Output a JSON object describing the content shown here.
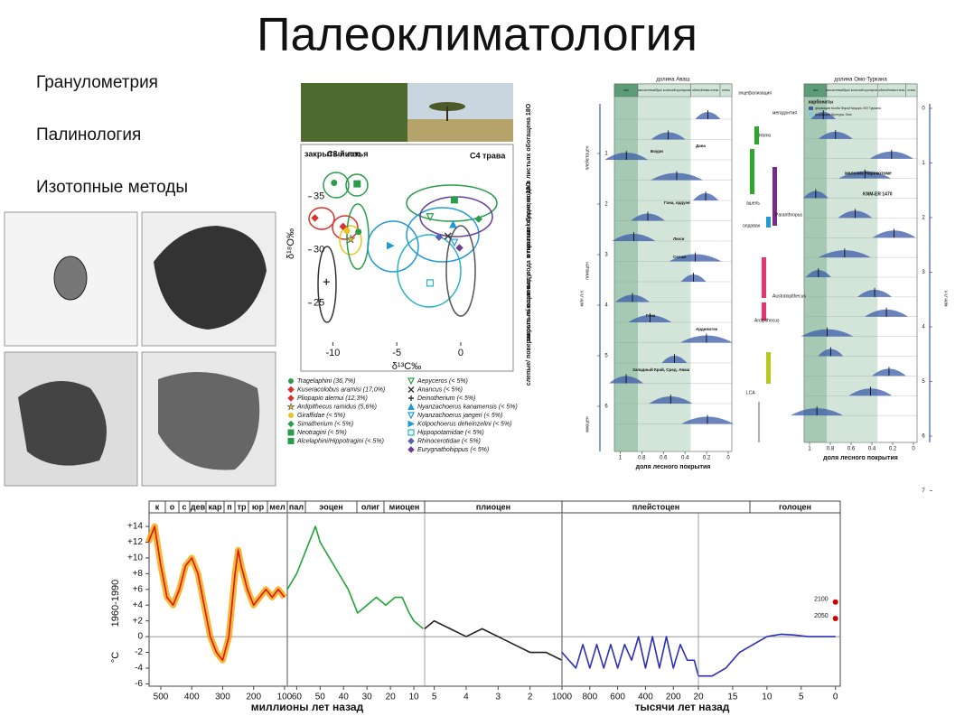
{
  "title": "Палеоклиматология",
  "methods": [
    "Гранулометрия",
    "Палинология",
    "Изотопные методы"
  ],
  "isotope_chart": {
    "type": "scatter",
    "xlabel": "δ¹³C‰",
    "ylabel": "δ¹⁸O‰",
    "xlim": [
      -12.5,
      4.1
    ],
    "ylim": [
      21,
      39.9
    ],
    "xticks": [
      -10,
      -5,
      0
    ],
    "yticks": [
      25,
      30,
      35
    ],
    "zone_labels": [
      "закрытый лес",
      "C3 листья",
      "C4 трава"
    ],
    "side_labels": [
      "открытые/ сухие, вода в листьях обогащена 18O",
      "закрытые/ влажные, вода в листьях обеднена 18O",
      "слепые/ поверхность пьющие воду"
    ],
    "series": [
      {
        "name": "Tragelaphini (36,7%)",
        "color": "#2a9d4a",
        "marker": "circle",
        "x": [
          -9.9,
          -8.0
        ],
        "values": [
          36.3,
          31.7
        ]
      },
      {
        "name": "Kuseracolobus aramisi (17,0%)",
        "color": "#d8322c",
        "marker": "diamond",
        "x": [
          -11.4
        ],
        "values": [
          33.0
        ]
      },
      {
        "name": "Pliopapio alemui (12,3%)",
        "color": "#d8322c",
        "marker": "diamond",
        "x": [
          -9.2
        ],
        "values": [
          32.2
        ]
      },
      {
        "name": "Ardipithecus ramidus (5,6%)",
        "color": "#e8c51e",
        "marker": "star",
        "x": [
          -8.6
        ],
        "values": [
          31.0
        ]
      },
      {
        "name": "Giraffidae (< 5%)",
        "color": "#e8c51e",
        "marker": "circle",
        "x": [
          -8.9
        ],
        "values": [
          31.8
        ]
      },
      {
        "name": "Simatherium (< 5%)",
        "color": "#2a9d4a",
        "marker": "diamond",
        "x": [
          1.4
        ],
        "values": [
          32.9
        ]
      },
      {
        "name": "Neotragini (< 5%)",
        "color": "#2a9d4a",
        "marker": "squareplus",
        "x": [
          -8.1
        ],
        "values": [
          36.2
        ]
      },
      {
        "name": "Alcelaphini/Hippotragini (< 5%)",
        "color": "#2a9d4a",
        "marker": "squarex",
        "x": [
          -0.5
        ],
        "values": [
          34.7
        ]
      },
      {
        "name": "Aepyceros (< 5%)",
        "color": "#2a9d4a",
        "marker": "tridown",
        "x": [
          -2.4
        ],
        "values": [
          33.1
        ]
      },
      {
        "name": "Anancus (< 5%)",
        "color": "#333333",
        "marker": "cross",
        "x": [
          -1.0
        ],
        "values": [
          31.3
        ]
      },
      {
        "name": "Deinotherium (< 5%)",
        "color": "#333333",
        "marker": "plus",
        "x": [
          -10.5
        ],
        "values": [
          27.0
        ]
      },
      {
        "name": "Nyanzachoerus kanamensis (< 5%)",
        "color": "#1e9ad6",
        "marker": "triup",
        "x": [
          -0.6
        ],
        "values": [
          32.4
        ]
      },
      {
        "name": "Nyanzachoerus jaegeri (< 5%)",
        "color": "#1e9ad6",
        "marker": "tridown",
        "x": [
          -0.5
        ],
        "values": [
          30.7
        ]
      },
      {
        "name": "Kolpochoerus deheinzelini (< 5%)",
        "color": "#1e9ad6",
        "marker": "triright",
        "x": [
          -5.5
        ],
        "values": [
          30.4
        ]
      },
      {
        "name": "Hippopotamidae (< 5%)",
        "color": "#27b4c2",
        "marker": "square",
        "x": [
          -2.4
        ],
        "values": [
          26.9
        ]
      },
      {
        "name": "Rhinocerotidae (< 5%)",
        "color": "#5b5fb0",
        "marker": "diamond",
        "x": [
          -1.7
        ],
        "values": [
          31.2
        ]
      },
      {
        "name": "Eurygnathohippus (< 5%)",
        "color": "#6a3d9a",
        "marker": "diamond",
        "x": [
          -0.1
        ],
        "values": [
          30.2
        ]
      }
    ]
  },
  "awash": {
    "title": "долина Аваш",
    "header": [
      "лес",
      "экосистема/буш/ колючий кустарник",
      "облесённая степь",
      "степь"
    ],
    "periods": [
      "плейстоцен",
      "плиоцен",
      "миоцен"
    ],
    "ylabel": "млн.л.н.",
    "yticks": [
      1,
      2,
      3,
      4,
      5,
      6
    ],
    "annotations": [
      "Дана",
      "Боури",
      "Гона, ордуэя",
      "Люси",
      "Селам",
      "Ардипитек",
      "Гона",
      "Западный Край, Сред. Аваш"
    ],
    "xlabel": "доля лесного покрытия",
    "xticks": [
      1,
      0.8,
      0.6,
      0.4,
      0.2,
      0
    ]
  },
  "hominins": [
    "энцефализация",
    "мегадонтия",
    "Homo",
    "Paranthropus",
    "Australopithecus",
    "Ardipithecus",
    "ашель",
    "олдован",
    "LCA"
  ],
  "omo": {
    "title": "долина Омо-Туркана",
    "header": [
      "лес",
      "экосистема/буш/ колючий кустарник",
      "облесённая степь",
      "степь"
    ],
    "legend_title": "карбонаты",
    "legend": [
      "формация Кооби Фора/Начукуи, В/З Туркана",
      "формация Шунгура, Омо"
    ],
    "annotations": [
      "мальчик Нарикотоме",
      "KNM-ER 1470"
    ],
    "ylabel": "млн.л.н.",
    "yticks": [
      0,
      1,
      2,
      3,
      4,
      5,
      6,
      7
    ],
    "xlabel": "доля лесного покрытия",
    "xticks": [
      1,
      0.8,
      0.6,
      0.4,
      0.2,
      0
    ]
  },
  "chart_data": {
    "type": "line",
    "ylabel": "°C",
    "ylabel2": "1960-1990",
    "ylim": [
      -6.3,
      15.5
    ],
    "yticks": [
      {
        "value": 14,
        "label": "+14"
      },
      {
        "value": 12,
        "label": "+12"
      },
      {
        "value": 10,
        "label": "+10"
      },
      {
        "value": 8,
        "label": "+8"
      },
      {
        "value": 6,
        "label": "+6"
      },
      {
        "value": 4,
        "label": "+4"
      },
      {
        "value": 2,
        "label": "+2"
      },
      0,
      -2,
      -4,
      -6
    ],
    "eras": [
      "к",
      "о",
      "с",
      "дев",
      "кар",
      "п",
      "тр",
      "юр",
      "мел",
      "пал",
      "эоцен",
      "олиг",
      "миоцен",
      "плиоцен",
      "плейстоцен",
      "голоцен"
    ],
    "xlabels": [
      "миллионы лет назад",
      "тысячи лет назад"
    ],
    "panels": [
      {
        "xlim": [
          538,
          91
        ],
        "xticks": [
          500,
          400,
          300,
          200,
          100
        ],
        "series": [
          {
            "color": "#f5a400",
            "x": [
              540,
              520,
              500,
              480,
              460,
              440,
              420,
              400,
              380,
              360,
              340,
              320,
              300,
              280,
              260,
              250,
              240,
              220,
              200,
              180,
              160,
              140,
              120,
              100
            ],
            "values": [
              12,
              14,
              9,
              5,
              4,
              6,
              9,
              10,
              8,
              4,
              0,
              -2,
              -3,
              0,
              8,
              11,
              9,
              6,
              4,
              5,
              6,
              5,
              6,
              5
            ]
          },
          {
            "color": "#d7191c",
            "x": [
              540,
              520,
              500,
              480,
              460,
              440,
              420,
              400,
              380,
              360,
              340,
              320,
              300,
              280,
              260,
              250,
              240,
              220,
              200,
              180,
              160,
              140,
              120,
              100
            ],
            "values": [
              12,
              14,
              9,
              5,
              4,
              6,
              9,
              10,
              8,
              4,
              0,
              -2,
              -3,
              0,
              8,
              11,
              9,
              6,
              4,
              5,
              6,
              5,
              6,
              5
            ]
          }
        ]
      },
      {
        "xlim": [
          64,
          5.4
        ],
        "xticks": [
          60,
          50,
          40,
          30,
          20,
          10
        ],
        "series": [
          {
            "color": "#1fa637",
            "x": [
              64,
              60,
              56,
              52,
              50,
              46,
              42,
              38,
              34,
              30,
              26,
              22,
              18,
              15,
              12,
              10,
              6
            ],
            "values": [
              6,
              8,
              11,
              14,
              12,
              10,
              8,
              6,
              3,
              4,
              5,
              4,
              5,
              5,
              3,
              2,
              1
            ]
          }
        ]
      },
      {
        "xlim": [
          5.3,
          1
        ],
        "xticks": [
          5,
          4,
          3,
          2
        ],
        "series": [
          {
            "color": "#222222",
            "x": [
              5.3,
              5,
              4.5,
              4,
              3.5,
              3,
              2.5,
              2,
              1.5,
              1
            ],
            "values": [
              1,
              2,
              1,
              0,
              1,
              0,
              -1,
              -2,
              -2,
              -3
            ]
          }
        ]
      },
      {
        "xlim": [
          1000,
          20
        ],
        "xticks": [
          1000,
          800,
          600,
          400,
          200
        ],
        "series": [
          {
            "color": "#2a2fb8",
            "x": [
              1000,
              900,
              850,
              800,
              750,
              700,
              650,
              600,
              550,
              500,
              450,
              400,
              350,
              300,
              250,
              200,
              150,
              100,
              50,
              20
            ],
            "values": [
              -2,
              -4,
              -1,
              -4,
              -1,
              -4,
              -1,
              -4,
              -1,
              -3,
              0,
              -4,
              0,
              -4,
              0,
              -4,
              -1,
              -3,
              -3,
              -5
            ]
          }
        ]
      },
      {
        "xlim": [
          20,
          -0.7
        ],
        "xticks": [
          20,
          15,
          10,
          5,
          0
        ],
        "series": [
          {
            "color": "#2a2fb8",
            "x": [
              20,
              18,
              16,
              14,
              12,
              10,
              8,
              6,
              4,
              2,
              0
            ],
            "values": [
              -5,
              -5,
              -4,
              -2,
              -1,
              0,
              0.3,
              0.2,
              0,
              0,
              0
            ]
          }
        ]
      }
    ],
    "projections": [
      {
        "label": "2100",
        "x": 0,
        "value": 4.4
      },
      {
        "label": "2050",
        "x": 0,
        "value": 2.3
      }
    ]
  }
}
